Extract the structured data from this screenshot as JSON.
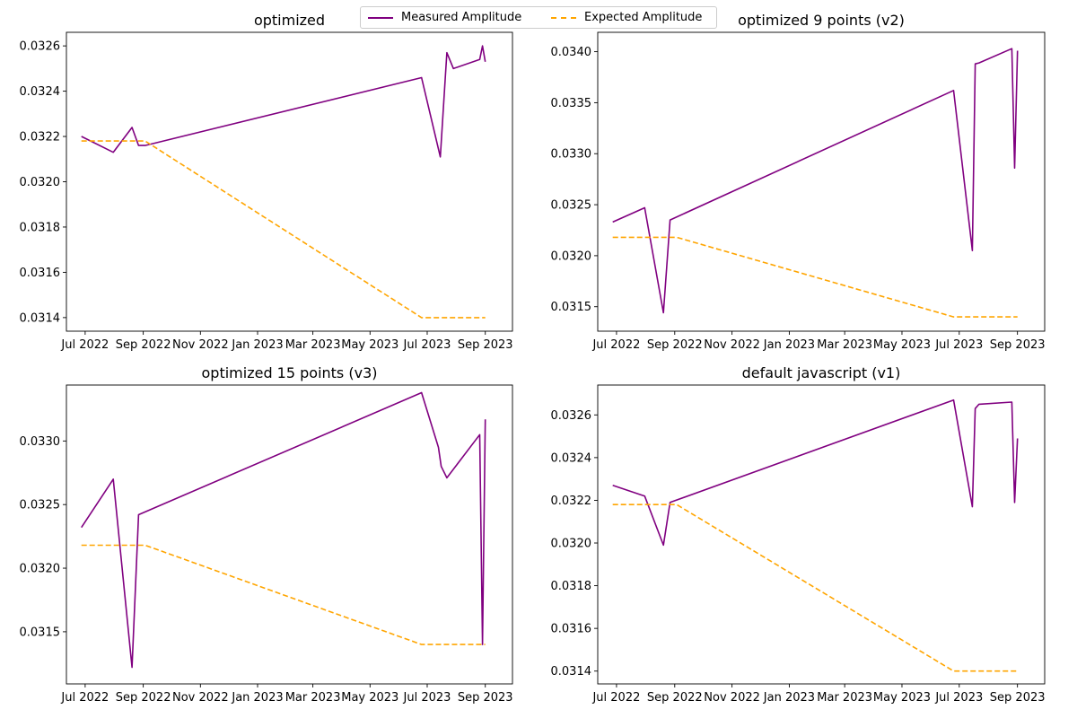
{
  "legend": {
    "measured_label": "Measured Amplitude",
    "expected_label": "Expected Amplitude"
  },
  "colors": {
    "measured": "#800080",
    "expected": "#FFA500",
    "axes": "#000000"
  },
  "chart_data": [
    {
      "type": "line",
      "title": "optimized",
      "xlabel": "",
      "ylabel": "",
      "xlim": [
        "2022-06-11",
        "2023-09-30"
      ],
      "ylim": [
        0.03134,
        0.03266
      ],
      "x_ticks": [
        {
          "date": "2022-07-01",
          "label": "Jul 2022"
        },
        {
          "date": "2022-09-01",
          "label": "Sep 2022"
        },
        {
          "date": "2022-11-01",
          "label": "Nov 2022"
        },
        {
          "date": "2023-01-01",
          "label": "Jan 2023"
        },
        {
          "date": "2023-03-01",
          "label": "Mar 2023"
        },
        {
          "date": "2023-05-01",
          "label": "May 2023"
        },
        {
          "date": "2023-07-01",
          "label": "Jul 2023"
        },
        {
          "date": "2023-09-01",
          "label": "Sep 2023"
        }
      ],
      "y_ticks": [
        0.0314,
        0.0316,
        0.0318,
        0.032,
        0.0322,
        0.0324,
        0.0326
      ],
      "y_tick_labels": [
        "0.0314",
        "0.0316",
        "0.0318",
        "0.0320",
        "0.0322",
        "0.0324",
        "0.0326"
      ],
      "grid": false,
      "series": [
        {
          "name": "Measured Amplitude",
          "style": "solid",
          "x": [
            "2022-06-27",
            "2022-07-31",
            "2022-08-20",
            "2022-08-27",
            "2022-09-03",
            "2023-06-25",
            "2023-07-15",
            "2023-07-22",
            "2023-07-29",
            "2023-08-26",
            "2023-08-29",
            "2023-09-01"
          ],
          "y": [
            0.0322,
            0.03213,
            0.03224,
            0.03216,
            0.03216,
            0.03246,
            0.03211,
            0.03257,
            0.0325,
            0.03254,
            0.0326,
            0.03253
          ]
        },
        {
          "name": "Expected Amplitude",
          "style": "dashed",
          "x": [
            "2022-06-27",
            "2022-08-27",
            "2022-09-03",
            "2023-06-25",
            "2023-09-01"
          ],
          "y": [
            0.03218,
            0.03218,
            0.03218,
            0.0314,
            0.0314
          ]
        }
      ]
    },
    {
      "type": "line",
      "title": "optimized 9 points (v2)",
      "xlabel": "",
      "ylabel": "",
      "xlim": [
        "2022-06-11",
        "2023-09-30"
      ],
      "ylim": [
        0.03126,
        0.03419
      ],
      "x_ticks": [
        {
          "date": "2022-07-01",
          "label": "Jul 2022"
        },
        {
          "date": "2022-09-01",
          "label": "Sep 2022"
        },
        {
          "date": "2022-11-01",
          "label": "Nov 2022"
        },
        {
          "date": "2023-01-01",
          "label": "Jan 2023"
        },
        {
          "date": "2023-03-01",
          "label": "Mar 2023"
        },
        {
          "date": "2023-05-01",
          "label": "May 2023"
        },
        {
          "date": "2023-07-01",
          "label": "Jul 2023"
        },
        {
          "date": "2023-09-01",
          "label": "Sep 2023"
        }
      ],
      "y_ticks": [
        0.0315,
        0.032,
        0.0325,
        0.033,
        0.0335,
        0.034
      ],
      "y_tick_labels": [
        "0.0315",
        "0.0320",
        "0.0325",
        "0.0330",
        "0.0335",
        "0.0340"
      ],
      "grid": false,
      "series": [
        {
          "name": "Measured Amplitude",
          "style": "solid",
          "x": [
            "2022-06-27",
            "2022-07-31",
            "2022-08-20",
            "2022-08-27",
            "2023-06-25",
            "2023-07-15",
            "2023-07-18",
            "2023-07-22",
            "2023-08-26",
            "2023-08-29",
            "2023-09-01"
          ],
          "y": [
            0.03233,
            0.03247,
            0.03144,
            0.03235,
            0.03362,
            0.03205,
            0.03388,
            0.03389,
            0.03403,
            0.03286,
            0.03401
          ]
        },
        {
          "name": "Expected Amplitude",
          "style": "dashed",
          "x": [
            "2022-06-27",
            "2022-08-27",
            "2022-09-03",
            "2023-06-25",
            "2023-09-01"
          ],
          "y": [
            0.03218,
            0.03218,
            0.03218,
            0.0314,
            0.0314
          ]
        }
      ]
    },
    {
      "type": "line",
      "title": "optimized 15 points (v3)",
      "xlabel": "",
      "ylabel": "",
      "xlim": [
        "2022-06-11",
        "2023-09-30"
      ],
      "ylim": [
        0.03109,
        0.03344
      ],
      "x_ticks": [
        {
          "date": "2022-07-01",
          "label": "Jul 2022"
        },
        {
          "date": "2022-09-01",
          "label": "Sep 2022"
        },
        {
          "date": "2022-11-01",
          "label": "Nov 2022"
        },
        {
          "date": "2023-01-01",
          "label": "Jan 2023"
        },
        {
          "date": "2023-03-01",
          "label": "Mar 2023"
        },
        {
          "date": "2023-05-01",
          "label": "May 2023"
        },
        {
          "date": "2023-07-01",
          "label": "Jul 2023"
        },
        {
          "date": "2023-09-01",
          "label": "Sep 2023"
        }
      ],
      "y_ticks": [
        0.0315,
        0.032,
        0.0325,
        0.033
      ],
      "y_tick_labels": [
        "0.0315",
        "0.0320",
        "0.0325",
        "0.0330"
      ],
      "grid": false,
      "series": [
        {
          "name": "Measured Amplitude",
          "style": "solid",
          "x": [
            "2022-06-27",
            "2022-07-31",
            "2022-08-20",
            "2022-08-27",
            "2023-06-25",
            "2023-07-13",
            "2023-07-16",
            "2023-07-22",
            "2023-08-26",
            "2023-08-29",
            "2023-09-01"
          ],
          "y": [
            0.03232,
            0.0327,
            0.03122,
            0.03242,
            0.03338,
            0.03295,
            0.0328,
            0.03271,
            0.03305,
            0.0314,
            0.03317
          ]
        },
        {
          "name": "Expected Amplitude",
          "style": "dashed",
          "x": [
            "2022-06-27",
            "2022-08-27",
            "2022-09-03",
            "2023-06-25",
            "2023-09-01"
          ],
          "y": [
            0.03218,
            0.03218,
            0.03218,
            0.0314,
            0.0314
          ]
        }
      ]
    },
    {
      "type": "line",
      "title": "default javascript (v1)",
      "xlabel": "",
      "ylabel": "",
      "xlim": [
        "2022-06-11",
        "2023-09-30"
      ],
      "ylim": [
        0.03134,
        0.03274
      ],
      "x_ticks": [
        {
          "date": "2022-07-01",
          "label": "Jul 2022"
        },
        {
          "date": "2022-09-01",
          "label": "Sep 2022"
        },
        {
          "date": "2022-11-01",
          "label": "Nov 2022"
        },
        {
          "date": "2023-01-01",
          "label": "Jan 2023"
        },
        {
          "date": "2023-03-01",
          "label": "Mar 2023"
        },
        {
          "date": "2023-05-01",
          "label": "May 2023"
        },
        {
          "date": "2023-07-01",
          "label": "Jul 2023"
        },
        {
          "date": "2023-09-01",
          "label": "Sep 2023"
        }
      ],
      "y_ticks": [
        0.0314,
        0.0316,
        0.0318,
        0.032,
        0.0322,
        0.0324,
        0.0326
      ],
      "y_tick_labels": [
        "0.0314",
        "0.0316",
        "0.0318",
        "0.0320",
        "0.0322",
        "0.0324",
        "0.0326"
      ],
      "grid": false,
      "series": [
        {
          "name": "Measured Amplitude",
          "style": "solid",
          "x": [
            "2022-06-27",
            "2022-07-31",
            "2022-08-20",
            "2022-08-27",
            "2023-06-25",
            "2023-07-15",
            "2023-07-18",
            "2023-07-22",
            "2023-08-26",
            "2023-08-29",
            "2023-09-01"
          ],
          "y": [
            0.03227,
            0.03222,
            0.03199,
            0.03219,
            0.03267,
            0.03217,
            0.03263,
            0.03265,
            0.03266,
            0.03219,
            0.03249
          ]
        },
        {
          "name": "Expected Amplitude",
          "style": "dashed",
          "x": [
            "2022-06-27",
            "2022-08-27",
            "2022-09-03",
            "2023-06-25",
            "2023-09-01"
          ],
          "y": [
            0.03218,
            0.03218,
            0.03218,
            0.0314,
            0.0314
          ]
        }
      ]
    }
  ]
}
